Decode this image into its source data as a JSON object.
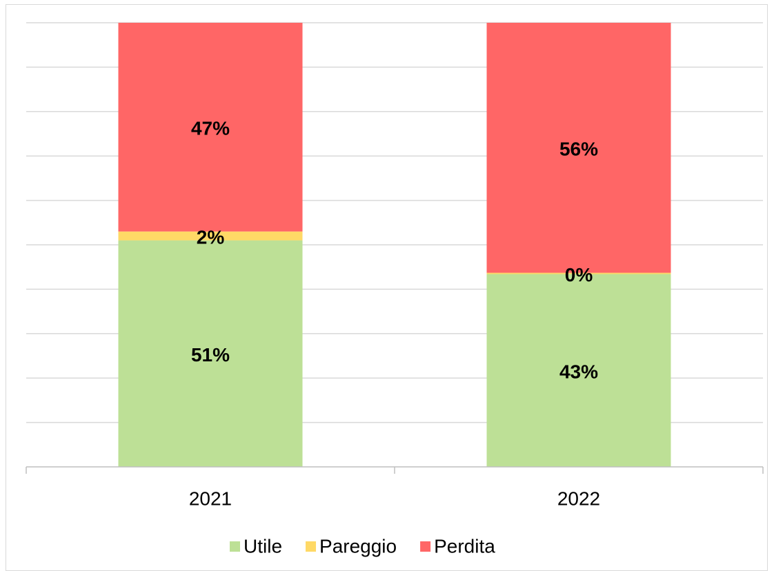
{
  "chart_data": {
    "type": "stacked_bar",
    "categories": [
      "2021",
      "2022"
    ],
    "series": [
      {
        "name": "Utile",
        "color": "#bde096",
        "values": [
          51,
          43.4
        ],
        "value_labels": [
          "51%",
          "43%"
        ]
      },
      {
        "name": "Pareggio",
        "color": "#ffd966",
        "values": [
          2,
          0.3
        ],
        "value_labels": [
          "2%",
          "0%"
        ]
      },
      {
        "name": "Perdita",
        "color": "#ff6666",
        "values": [
          47,
          56.3
        ],
        "value_labels": [
          "47%",
          "56%"
        ]
      }
    ],
    "ylim": [
      0,
      100
    ],
    "yticks": [
      0,
      10,
      20,
      30,
      40,
      50,
      60,
      70,
      80,
      90,
      100
    ],
    "grid": true,
    "legend": "bottom"
  }
}
